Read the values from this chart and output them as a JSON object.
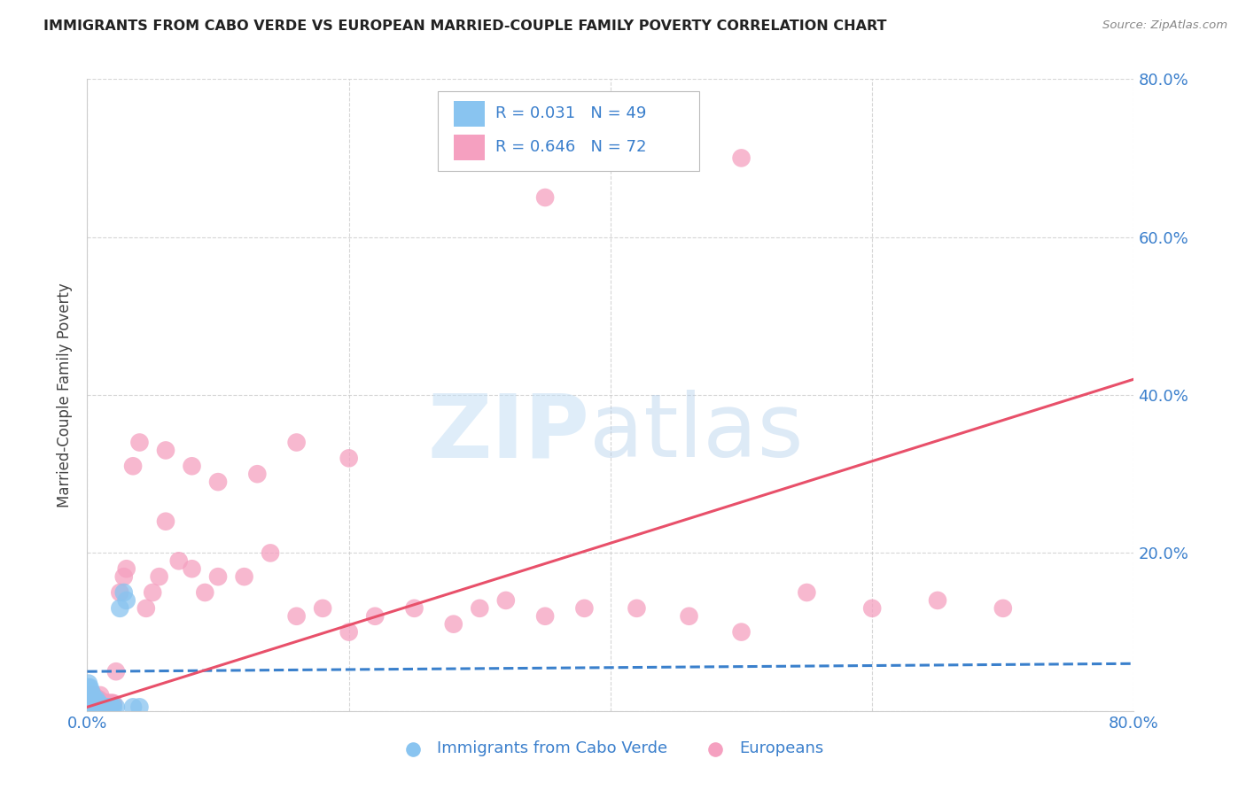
{
  "title": "IMMIGRANTS FROM CABO VERDE VS EUROPEAN MARRIED-COUPLE FAMILY POVERTY CORRELATION CHART",
  "source": "Source: ZipAtlas.com",
  "ylabel": "Married-Couple Family Poverty",
  "xlim": [
    0,
    0.8
  ],
  "ylim": [
    0,
    0.8
  ],
  "watermark_zip": "ZIP",
  "watermark_atlas": "atlas",
  "legend_r1": "R = 0.031",
  "legend_n1": "N = 49",
  "legend_r2": "R = 0.646",
  "legend_n2": "N = 72",
  "label1": "Immigrants from Cabo Verde",
  "label2": "Europeans",
  "color1": "#89c4f0",
  "color2": "#f5a0c0",
  "line1_color": "#3a80cc",
  "line2_color": "#e8506a",
  "background": "#ffffff",
  "grid_color": "#cccccc",
  "text_color_blue": "#3a7fcc",
  "cabo_x": [
    0.0,
    0.0,
    0.0,
    0.0,
    0.001,
    0.001,
    0.001,
    0.001,
    0.001,
    0.002,
    0.002,
    0.002,
    0.002,
    0.003,
    0.003,
    0.003,
    0.004,
    0.004,
    0.004,
    0.005,
    0.005,
    0.006,
    0.006,
    0.007,
    0.007,
    0.008,
    0.008,
    0.009,
    0.009,
    0.01,
    0.011,
    0.012,
    0.013,
    0.014,
    0.015,
    0.016,
    0.018,
    0.019,
    0.02,
    0.022,
    0.025,
    0.028,
    0.03,
    0.035,
    0.04,
    0.005,
    0.01,
    0.008,
    0.015
  ],
  "cabo_y": [
    0.005,
    0.01,
    0.015,
    0.02,
    0.005,
    0.01,
    0.025,
    0.03,
    0.035,
    0.005,
    0.01,
    0.02,
    0.03,
    0.005,
    0.015,
    0.025,
    0.005,
    0.01,
    0.02,
    0.005,
    0.015,
    0.005,
    0.01,
    0.005,
    0.015,
    0.005,
    0.01,
    0.005,
    0.01,
    0.005,
    0.005,
    0.005,
    0.005,
    0.005,
    0.005,
    0.005,
    0.005,
    0.005,
    0.005,
    0.005,
    0.13,
    0.15,
    0.14,
    0.005,
    0.005,
    0.005,
    0.005,
    0.005,
    0.005
  ],
  "euro_x": [
    0.0,
    0.001,
    0.001,
    0.002,
    0.002,
    0.003,
    0.003,
    0.004,
    0.004,
    0.005,
    0.005,
    0.006,
    0.006,
    0.007,
    0.007,
    0.008,
    0.008,
    0.009,
    0.009,
    0.01,
    0.01,
    0.011,
    0.012,
    0.013,
    0.014,
    0.015,
    0.016,
    0.017,
    0.018,
    0.019,
    0.02,
    0.022,
    0.025,
    0.028,
    0.03,
    0.035,
    0.04,
    0.045,
    0.05,
    0.055,
    0.06,
    0.07,
    0.08,
    0.09,
    0.1,
    0.12,
    0.14,
    0.16,
    0.18,
    0.2,
    0.22,
    0.25,
    0.28,
    0.3,
    0.32,
    0.35,
    0.38,
    0.42,
    0.46,
    0.5,
    0.55,
    0.6,
    0.65,
    0.7,
    0.35,
    0.5,
    0.06,
    0.08,
    0.1,
    0.13,
    0.16,
    0.2
  ],
  "euro_y": [
    0.005,
    0.005,
    0.02,
    0.005,
    0.015,
    0.005,
    0.02,
    0.005,
    0.015,
    0.005,
    0.02,
    0.005,
    0.015,
    0.005,
    0.015,
    0.005,
    0.015,
    0.005,
    0.015,
    0.005,
    0.02,
    0.01,
    0.01,
    0.01,
    0.01,
    0.01,
    0.01,
    0.01,
    0.01,
    0.01,
    0.01,
    0.05,
    0.15,
    0.17,
    0.18,
    0.31,
    0.34,
    0.13,
    0.15,
    0.17,
    0.24,
    0.19,
    0.18,
    0.15,
    0.17,
    0.17,
    0.2,
    0.12,
    0.13,
    0.1,
    0.12,
    0.13,
    0.11,
    0.13,
    0.14,
    0.12,
    0.13,
    0.13,
    0.12,
    0.1,
    0.15,
    0.13,
    0.14,
    0.13,
    0.65,
    0.7,
    0.33,
    0.31,
    0.29,
    0.3,
    0.34,
    0.32
  ],
  "cabo_line_x": [
    0.0,
    0.8
  ],
  "cabo_line_y": [
    0.05,
    0.06
  ],
  "euro_line_x": [
    0.0,
    0.8
  ],
  "euro_line_y": [
    0.005,
    0.42
  ]
}
